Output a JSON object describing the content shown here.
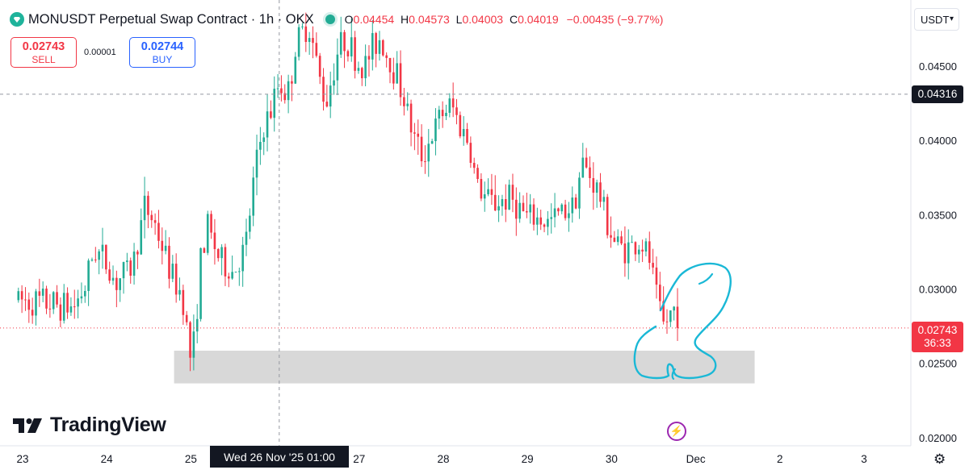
{
  "header": {
    "symbol": "MONUSDT Perpetual Swap Contract · 1h · OKX",
    "ohlc_label_o": "O",
    "ohlc_o": "0.04454",
    "ohlc_label_h": "H",
    "ohlc_h": "0.04573",
    "ohlc_label_l": "L",
    "ohlc_l": "0.04003",
    "ohlc_label_c": "C",
    "ohlc_c": "0.04019",
    "change": "−0.00435 (−9.77%)"
  },
  "trade": {
    "sell_price": "0.02743",
    "sell_label": "SELL",
    "spread": "0.00001",
    "buy_price": "0.02744",
    "buy_label": "BUY"
  },
  "currency": "USDT",
  "crosshair": {
    "price": "0.04316",
    "time": "Wed 26 Nov '25   01:00"
  },
  "last_price": {
    "price": "0.02743",
    "countdown": "36:33"
  },
  "brand": "TradingView",
  "colors": {
    "up": "#22ab94",
    "down": "#f23645",
    "zone": "#d1d1d1",
    "drawing": "#1ab8d6",
    "crosshair": "#9598a1"
  },
  "chart_data": {
    "type": "candlestick",
    "interval": "1h",
    "ylim": [
      0.0195,
      0.0495
    ],
    "y_ticks": [
      "0.04500",
      "0.04000",
      "0.03500",
      "0.03000",
      "0.02500",
      "0.02000"
    ],
    "x_ticks": [
      "23",
      "24",
      "25",
      "26",
      "27",
      "28",
      "29",
      "30",
      "Dec",
      "2",
      "3"
    ],
    "support_zone": {
      "from_day": 24.8,
      "to_day": 31.7,
      "low": 0.0237,
      "high": 0.0259
    },
    "last_price_line": 0.02743,
    "crosshair_price": 0.04316,
    "crosshair_day": 26.05,
    "close_path": [
      [
        22.95,
        0.0293
      ],
      [
        23.3,
        0.0291
      ],
      [
        23.6,
        0.0288
      ],
      [
        23.75,
        0.0303
      ],
      [
        23.85,
        0.0328
      ],
      [
        24.0,
        0.0318
      ],
      [
        24.1,
        0.0305
      ],
      [
        24.3,
        0.0315
      ],
      [
        24.45,
        0.0355
      ],
      [
        24.55,
        0.0348
      ],
      [
        24.7,
        0.0322
      ],
      [
        24.8,
        0.0305
      ],
      [
        24.9,
        0.0297
      ],
      [
        25.0,
        0.0252
      ],
      [
        25.05,
        0.0268
      ],
      [
        25.1,
        0.0315
      ],
      [
        25.2,
        0.0342
      ],
      [
        25.35,
        0.0319
      ],
      [
        25.5,
        0.0312
      ],
      [
        25.65,
        0.0328
      ],
      [
        25.75,
        0.0375
      ],
      [
        25.85,
        0.0408
      ],
      [
        25.95,
        0.042
      ],
      [
        26.05,
        0.044
      ],
      [
        26.15,
        0.043
      ],
      [
        26.25,
        0.0465
      ],
      [
        26.4,
        0.048
      ],
      [
        26.5,
        0.045
      ],
      [
        26.6,
        0.0425
      ],
      [
        26.75,
        0.0462
      ],
      [
        26.85,
        0.047
      ],
      [
        26.95,
        0.0455
      ],
      [
        27.05,
        0.0448
      ],
      [
        27.15,
        0.0462
      ],
      [
        27.25,
        0.047
      ],
      [
        27.35,
        0.0455
      ],
      [
        27.45,
        0.0445
      ],
      [
        27.55,
        0.0425
      ],
      [
        27.65,
        0.0402
      ],
      [
        27.75,
        0.039
      ],
      [
        27.9,
        0.0408
      ],
      [
        28.0,
        0.042
      ],
      [
        28.1,
        0.0424
      ],
      [
        28.2,
        0.041
      ],
      [
        28.3,
        0.04
      ],
      [
        28.4,
        0.037
      ],
      [
        28.5,
        0.0362
      ],
      [
        28.6,
        0.0358
      ],
      [
        28.8,
        0.0362
      ],
      [
        29.0,
        0.0348
      ],
      [
        29.1,
        0.0348
      ],
      [
        29.25,
        0.0345
      ],
      [
        29.4,
        0.0352
      ],
      [
        29.55,
        0.0358
      ],
      [
        29.65,
        0.0385
      ],
      [
        29.75,
        0.0376
      ],
      [
        29.85,
        0.0365
      ],
      [
        29.95,
        0.0345
      ],
      [
        30.05,
        0.033
      ],
      [
        30.2,
        0.0328
      ],
      [
        30.35,
        0.0332
      ],
      [
        30.45,
        0.032
      ],
      [
        30.55,
        0.029
      ],
      [
        30.62,
        0.0275
      ],
      [
        30.68,
        0.0282
      ],
      [
        30.75,
        0.0288
      ],
      [
        30.82,
        0.02743
      ]
    ]
  }
}
